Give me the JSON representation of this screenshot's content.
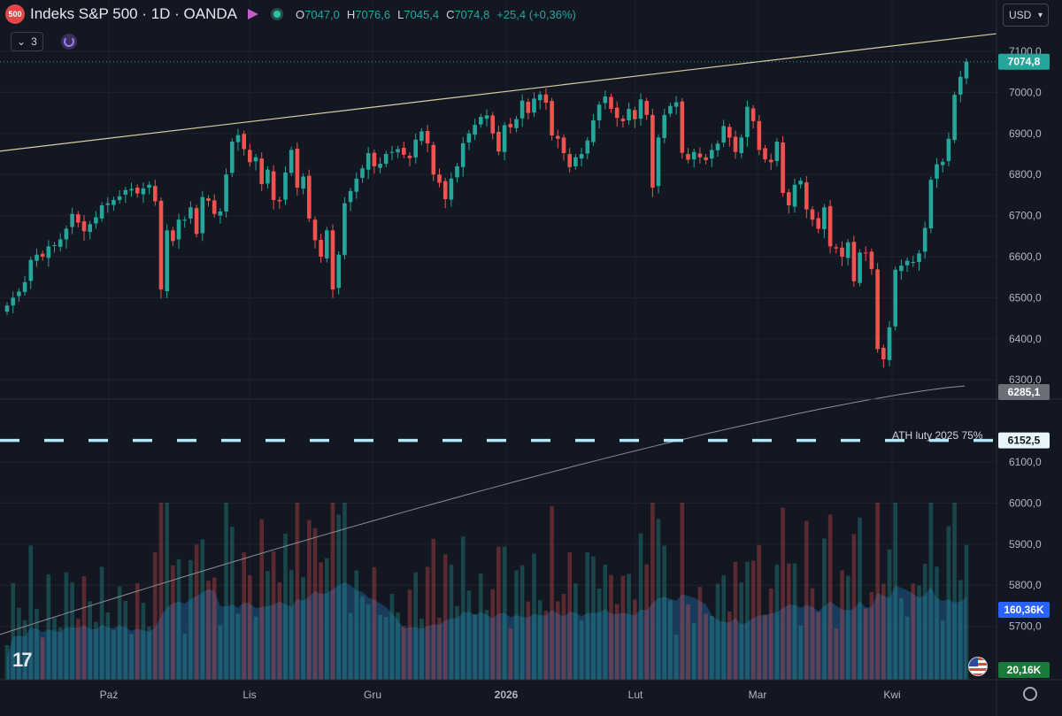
{
  "header": {
    "symbol_badge": "500",
    "title": "Indeks S&P 500 · 1D · OANDA",
    "ohlc": {
      "o_label": "O",
      "o": "7047,0",
      "h_label": "H",
      "h": "7076,6",
      "l_label": "L",
      "l": "7045,4",
      "c_label": "C",
      "c": "7074,8",
      "change": "+25,4 (+0,36%)"
    },
    "indicator_count": "3",
    "currency": "USD"
  },
  "colors": {
    "up": "#26a69a",
    "down": "#ef5350",
    "background": "#131722",
    "trendline": "#d7cfa0",
    "ath_line": "#b6e6f4",
    "ma_line": "#8a8f99",
    "volume_area": "#1e5a8a"
  },
  "annotations": {
    "ath_label": "ATH luty 2025 75%"
  },
  "chart_data": {
    "type": "candlestick",
    "y_axis_ticks": [
      "7100,0",
      "7000,0",
      "6900,0",
      "6800,0",
      "6700,0",
      "6600,0",
      "6500,0",
      "6400,0",
      "6300,0",
      "6100,0",
      "6000,0",
      "5900,0",
      "5800,0",
      "5700,0"
    ],
    "y_range": [
      5647,
      7146
    ],
    "x_axis_labels": [
      "Paź",
      "Lis",
      "Gru",
      "2026",
      "Lut",
      "Mar",
      "Kwi"
    ],
    "price_labels": {
      "last": "7074,8",
      "ma": "6285,1",
      "ath": "6152,5",
      "volume_ma": "160,36K",
      "volume_last": "20,16K"
    },
    "ath_level": 6152.5,
    "ma_value": 6285.1,
    "trendline": {
      "start": 6857,
      "end": 7143
    },
    "closes": [
      6481,
      6500,
      6515,
      6538,
      6592,
      6605,
      6600,
      6625,
      6628,
      6642,
      6668,
      6704,
      6683,
      6662,
      6679,
      6696,
      6725,
      6730,
      6738,
      6747,
      6762,
      6765,
      6754,
      6766,
      6775,
      6735,
      6520,
      6664,
      6638,
      6690,
      6690,
      6720,
      6655,
      6745,
      6736,
      6704,
      6710,
      6800,
      6880,
      6896,
      6862,
      6830,
      6842,
      6777,
      6812,
      6738,
      6735,
      6805,
      6860,
      6768,
      6795,
      6693,
      6640,
      6600,
      6664,
      6520,
      6605,
      6730,
      6760,
      6790,
      6815,
      6852,
      6820,
      6826,
      6850,
      6855,
      6862,
      6848,
      6840,
      6885,
      6905,
      6876,
      6800,
      6780,
      6740,
      6790,
      6820,
      6876,
      6900,
      6921,
      6940,
      6944,
      6900,
      6856,
      6920,
      6915,
      6935,
      6980,
      6950,
      6985,
      6995,
      6975,
      6895,
      6887,
      6852,
      6818,
      6842,
      6850,
      6883,
      6932,
      6970,
      6990,
      6960,
      6938,
      6930,
      6960,
      6935,
      6983,
      6945,
      6768,
      6890,
      6945,
      6967,
      6976,
      6853,
      6836,
      6855,
      6842,
      6835,
      6860,
      6875,
      6918,
      6890,
      6855,
      6890,
      6965,
      6930,
      6860,
      6837,
      6830,
      6880,
      6755,
      6725,
      6775,
      6785,
      6715,
      6690,
      6668,
      6720,
      6625,
      6620,
      6600,
      6635,
      6540,
      6610,
      6608,
      6570,
      6375,
      6350,
      6428,
      6568,
      6578,
      6590,
      6587,
      6608,
      6670,
      6787,
      6825,
      6831,
      6887,
      6994,
      7038,
      7074.8
    ]
  }
}
